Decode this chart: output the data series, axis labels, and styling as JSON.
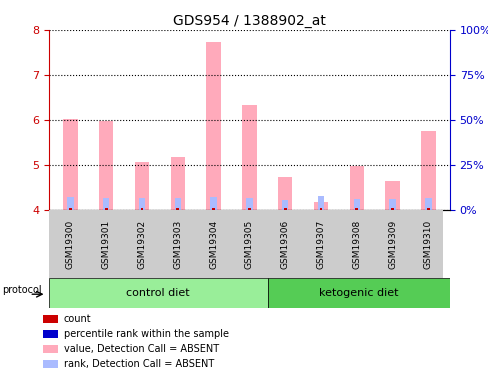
{
  "title": "GDS954 / 1388902_at",
  "samples": [
    "GSM19300",
    "GSM19301",
    "GSM19302",
    "GSM19303",
    "GSM19304",
    "GSM19305",
    "GSM19306",
    "GSM19307",
    "GSM19308",
    "GSM19309",
    "GSM19310"
  ],
  "groups": {
    "control diet": [
      0,
      1,
      2,
      3,
      4,
      5
    ],
    "ketogenic diet": [
      6,
      7,
      8,
      9,
      10
    ]
  },
  "pink_bar_tops": [
    6.02,
    5.97,
    5.07,
    5.17,
    7.73,
    6.33,
    4.73,
    4.18,
    4.97,
    4.65,
    5.75
  ],
  "blue_bar_tops": [
    4.28,
    4.27,
    4.27,
    4.27,
    4.28,
    4.27,
    4.22,
    4.32,
    4.25,
    4.24,
    4.27
  ],
  "ylim": [
    4.0,
    8.0
  ],
  "yticks_left": [
    4,
    5,
    6,
    7,
    8
  ],
  "yticks_right": [
    0,
    25,
    50,
    75,
    100
  ],
  "y_right_labels": [
    "0%",
    "25%",
    "50%",
    "75%",
    "100%"
  ],
  "bar_bottom": 4.0,
  "bar_width": 0.4,
  "pink_color": "#FFAABB",
  "blue_color": "#AABBFF",
  "left_axis_color": "#CC0000",
  "right_axis_color": "#0000CC",
  "grid_color": "#000000",
  "bg_plot": "#FFFFFF",
  "bg_sample_labels": "#CCCCCC",
  "bg_group_control": "#99EE99",
  "bg_group_ketogenic": "#55CC55",
  "group_control_label": "control diet",
  "group_ketogenic_label": "ketogenic diet",
  "protocol_label": "protocol",
  "legend_items": [
    {
      "label": "count",
      "color": "#CC0000",
      "style": "square"
    },
    {
      "label": "percentile rank within the sample",
      "color": "#0000CC",
      "style": "square"
    },
    {
      "label": "value, Detection Call = ABSENT",
      "color": "#FFAABB",
      "style": "square"
    },
    {
      "label": "rank, Detection Call = ABSENT",
      "color": "#AABBFF",
      "style": "square"
    }
  ]
}
